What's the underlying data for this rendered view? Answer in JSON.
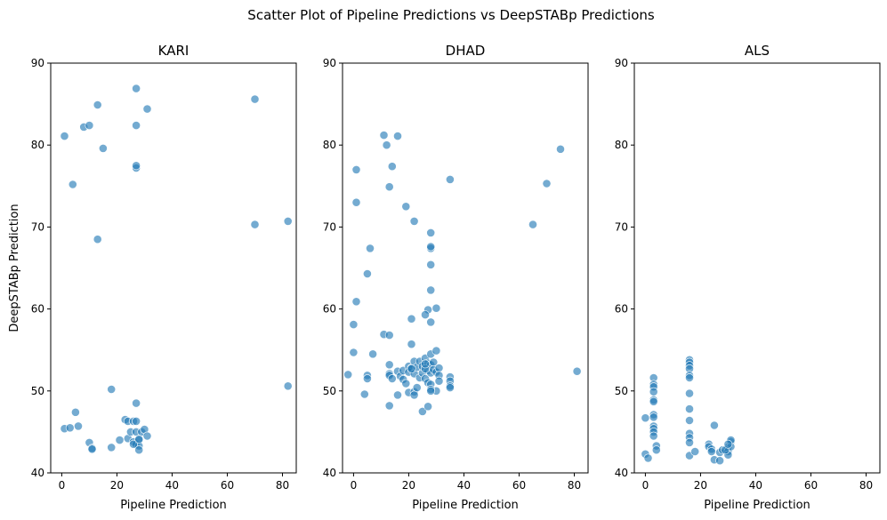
{
  "suptitle": "Scatter Plot of Pipeline Predictions vs DeepSTABp Predictions",
  "chart_data": [
    {
      "type": "scatter",
      "title": "KARI",
      "xlabel": "Pipeline Prediction",
      "ylabel": "DeepSTABp Prediction",
      "xlim": [
        -4,
        85
      ],
      "ylim": [
        40,
        90
      ],
      "xticks": [
        0,
        20,
        40,
        60,
        80
      ],
      "yticks": [
        40,
        50,
        60,
        70,
        80,
        90
      ],
      "grid": false,
      "marker_color": "#1f77b4",
      "points": [
        [
          1,
          81.1
        ],
        [
          8,
          82.2
        ],
        [
          10,
          82.4
        ],
        [
          13,
          84.9
        ],
        [
          15,
          79.6
        ],
        [
          27,
          86.9
        ],
        [
          27,
          82.4
        ],
        [
          31,
          84.4
        ],
        [
          27,
          77.2
        ],
        [
          27,
          77.5
        ],
        [
          4,
          75.2
        ],
        [
          13,
          68.5
        ],
        [
          70,
          85.6
        ],
        [
          70,
          70.3
        ],
        [
          82,
          70.7
        ],
        [
          82,
          50.6
        ],
        [
          18,
          50.2
        ],
        [
          27,
          48.5
        ],
        [
          1,
          45.4
        ],
        [
          3,
          45.5
        ],
        [
          6,
          45.7
        ],
        [
          5,
          47.4
        ],
        [
          10,
          43.7
        ],
        [
          11,
          43.0
        ],
        [
          11,
          42.9
        ],
        [
          18,
          43.1
        ],
        [
          21,
          44.0
        ],
        [
          23,
          46.5
        ],
        [
          24,
          46.3
        ],
        [
          24,
          44.2
        ],
        [
          25,
          45.0
        ],
        [
          26,
          43.8
        ],
        [
          26,
          46.3
        ],
        [
          27,
          46.3
        ],
        [
          27,
          45.0
        ],
        [
          27,
          43.5
        ],
        [
          28,
          44.0
        ],
        [
          28,
          43.3
        ],
        [
          28,
          42.8
        ],
        [
          29,
          45.0
        ],
        [
          30,
          45.3
        ],
        [
          31,
          44.5
        ],
        [
          26,
          43.5
        ],
        [
          28,
          44.1
        ]
      ]
    },
    {
      "type": "scatter",
      "title": "DHAD",
      "xlabel": "Pipeline Prediction",
      "ylabel": "",
      "xlim": [
        -4,
        85
      ],
      "ylim": [
        40,
        90
      ],
      "xticks": [
        0,
        20,
        40,
        60,
        80
      ],
      "yticks": [
        40,
        50,
        60,
        70,
        80,
        90
      ],
      "grid": false,
      "marker_color": "#1f77b4",
      "points": [
        [
          11,
          81.2
        ],
        [
          16,
          81.1
        ],
        [
          12,
          80.0
        ],
        [
          1,
          77.0
        ],
        [
          14,
          77.4
        ],
        [
          13,
          74.9
        ],
        [
          35,
          75.8
        ],
        [
          75,
          79.5
        ],
        [
          70,
          75.3
        ],
        [
          1,
          73.0
        ],
        [
          19,
          72.5
        ],
        [
          22,
          70.7
        ],
        [
          65,
          70.3
        ],
        [
          28,
          69.3
        ],
        [
          6,
          67.4
        ],
        [
          28,
          67.4
        ],
        [
          28,
          67.6
        ],
        [
          28,
          65.4
        ],
        [
          5,
          64.3
        ],
        [
          28,
          62.3
        ],
        [
          1,
          60.9
        ],
        [
          30,
          60.1
        ],
        [
          27,
          59.9
        ],
        [
          21,
          58.8
        ],
        [
          26,
          59.3
        ],
        [
          28,
          58.4
        ],
        [
          0,
          58.1
        ],
        [
          11,
          56.9
        ],
        [
          13,
          56.8
        ],
        [
          21,
          55.7
        ],
        [
          0,
          54.7
        ],
        [
          7,
          54.5
        ],
        [
          -2,
          52.0
        ],
        [
          5,
          51.9
        ],
        [
          5,
          51.5
        ],
        [
          13,
          53.2
        ],
        [
          13,
          52.1
        ],
        [
          13,
          51.9
        ],
        [
          14,
          51.5
        ],
        [
          16,
          52.4
        ],
        [
          17,
          51.8
        ],
        [
          18,
          52.5
        ],
        [
          18,
          51.4
        ],
        [
          20,
          53.0
        ],
        [
          20,
          52.3
        ],
        [
          21,
          52.8
        ],
        [
          22,
          53.6
        ],
        [
          22,
          52.1
        ],
        [
          23,
          52.9
        ],
        [
          24,
          53.6
        ],
        [
          24,
          51.6
        ],
        [
          25,
          52.2
        ],
        [
          25,
          53.0
        ],
        [
          26,
          54.0
        ],
        [
          26,
          51.5
        ],
        [
          27,
          53.4
        ],
        [
          27,
          52.5
        ],
        [
          27,
          51.0
        ],
        [
          28,
          54.5
        ],
        [
          28,
          53.2
        ],
        [
          28,
          52.2
        ],
        [
          28,
          50.8
        ],
        [
          29,
          53.5
        ],
        [
          29,
          52.6
        ],
        [
          30,
          54.9
        ],
        [
          30,
          52.3
        ],
        [
          30,
          50.0
        ],
        [
          31,
          52.8
        ],
        [
          31,
          51.9
        ],
        [
          31,
          51.2
        ],
        [
          35,
          51.7
        ],
        [
          35,
          51.2
        ],
        [
          35,
          50.6
        ],
        [
          35,
          50.4
        ],
        [
          4,
          49.6
        ],
        [
          13,
          48.2
        ],
        [
          16,
          49.5
        ],
        [
          20,
          49.8
        ],
        [
          22,
          49.9
        ],
        [
          22,
          49.5
        ],
        [
          25,
          47.5
        ],
        [
          27,
          48.1
        ],
        [
          28,
          50.2
        ],
        [
          81,
          52.4
        ],
        [
          26,
          52.7
        ],
        [
          23,
          50.4
        ],
        [
          28,
          50.0
        ],
        [
          21,
          52.7
        ],
        [
          19,
          50.9
        ],
        [
          26,
          53.3
        ]
      ]
    },
    {
      "type": "scatter",
      "title": "ALS",
      "xlabel": "Pipeline Prediction",
      "ylabel": "",
      "xlim": [
        -4,
        85
      ],
      "ylim": [
        40,
        90
      ],
      "xticks": [
        0,
        20,
        40,
        60,
        80
      ],
      "yticks": [
        40,
        50,
        60,
        70,
        80,
        90
      ],
      "grid": false,
      "marker_color": "#1f77b4",
      "points": [
        [
          3,
          51.6
        ],
        [
          3,
          50.8
        ],
        [
          3,
          50.5
        ],
        [
          3,
          49.9
        ],
        [
          3,
          48.9
        ],
        [
          3,
          48.7
        ],
        [
          3,
          47.1
        ],
        [
          3,
          46.8
        ],
        [
          3,
          45.7
        ],
        [
          3,
          45.4
        ],
        [
          3,
          45.0
        ],
        [
          3,
          44.5
        ],
        [
          4,
          43.3
        ],
        [
          4,
          42.8
        ],
        [
          0,
          46.7
        ],
        [
          0,
          42.3
        ],
        [
          1,
          41.8
        ],
        [
          16,
          53.8
        ],
        [
          16,
          53.5
        ],
        [
          16,
          53.1
        ],
        [
          16,
          52.7
        ],
        [
          16,
          51.9
        ],
        [
          16,
          51.6
        ],
        [
          16,
          49.7
        ],
        [
          16,
          47.8
        ],
        [
          16,
          46.4
        ],
        [
          16,
          44.8
        ],
        [
          16,
          44.3
        ],
        [
          16,
          43.7
        ],
        [
          16,
          42.1
        ],
        [
          18,
          42.6
        ],
        [
          25,
          45.8
        ],
        [
          23,
          43.5
        ],
        [
          23,
          43.2
        ],
        [
          24,
          42.9
        ],
        [
          24,
          42.6
        ],
        [
          25,
          41.6
        ],
        [
          27,
          41.5
        ],
        [
          27,
          42.5
        ],
        [
          28,
          42.8
        ],
        [
          30,
          43.1
        ],
        [
          30,
          42.6
        ],
        [
          30,
          42.2
        ],
        [
          31,
          43.8
        ],
        [
          31,
          43.2
        ],
        [
          31,
          44.0
        ],
        [
          29,
          42.8
        ],
        [
          30,
          43.5
        ]
      ]
    }
  ]
}
